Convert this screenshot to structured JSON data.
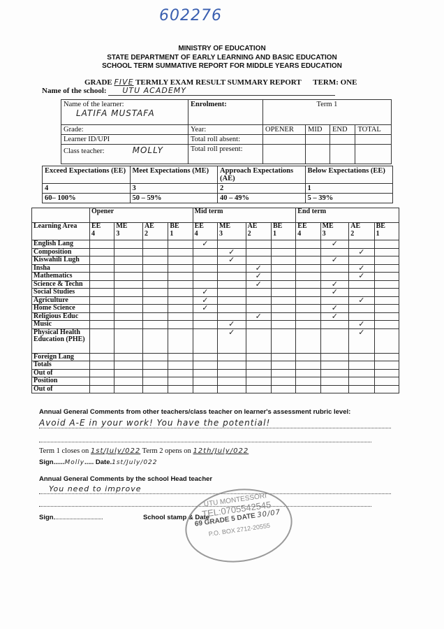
{
  "doc_number": "602276",
  "header": {
    "line1": "MINISTRY OF EDUCATION",
    "line2": "STATE DEPARTMENT OF EARLY LEARNING AND BASIC EDUCATION",
    "line3": "SCHOOL TERM SUMMATIVE REPORT FOR MIDDLE YEARS EDUCATION"
  },
  "title": {
    "grade_label": "GRADE",
    "grade_value": "FIVE",
    "report_label": "TERMLY EXAM RESULT SUMMARY REPORT",
    "term": "TERM: ONE"
  },
  "school": {
    "label": "Name of the school:",
    "value": "UTU ACADEMY"
  },
  "learner_info": {
    "name_label": "Name of the learner:",
    "name_value": "LATIFA MUSTAFA",
    "grade_label": "Grade:",
    "id_label": "Learner ID/UPI",
    "teacher_label": "Class teacher:",
    "teacher_value": "MOLLY",
    "enrolment_label": "Enrolment:",
    "year_label": "Year:",
    "absent_label": "Total roll absent:",
    "present_label": "Total roll present:",
    "term_header": "Term 1",
    "term_cols": [
      "OPENER",
      "MID",
      "END",
      "TOTAL"
    ]
  },
  "rubric": [
    {
      "label": "Exceed Expectations (EE)",
      "score": "4",
      "range": "60– 100%"
    },
    {
      "label": "Meet Expectations (ME)",
      "score": "3",
      "range": "50 – 59%"
    },
    {
      "label": "Approach Expectations (AE)",
      "score": "2",
      "range": "40 – 49%"
    },
    {
      "label": "Below Expectations (EE)",
      "score": "1",
      "range": "5 – 39%"
    }
  ],
  "results": {
    "area_header": "Learning Area",
    "periods": [
      "Opener",
      "Mid term",
      "End term"
    ],
    "levels": [
      "EE 4",
      "ME 3",
      "AE 2",
      "BE 1"
    ],
    "check_mark": "✓",
    "rows": [
      {
        "area": "English Lang",
        "mid": "EE",
        "end": "ME"
      },
      {
        "area": "Composition",
        "mid": "ME",
        "end": "AE"
      },
      {
        "area": "Kiswahili Lugh",
        "mid": "ME",
        "end": "ME"
      },
      {
        "area": "Insha",
        "mid": "AE",
        "end": "AE"
      },
      {
        "area": "Mathematics",
        "mid": "AE",
        "end": "AE"
      },
      {
        "area": "Science & Techn",
        "mid": "AE",
        "end": "ME"
      },
      {
        "area": "Social Studies",
        "mid": "EE",
        "end": "ME"
      },
      {
        "area": "Agriculture",
        "mid": "EE",
        "end": "AE"
      },
      {
        "area": "Home Science",
        "mid": "EE",
        "end": "ME"
      },
      {
        "area": "Religious Educ",
        "mid": "AE",
        "end": "ME"
      },
      {
        "area": "Music",
        "mid": "ME",
        "end": "AE"
      },
      {
        "area": "Physical Health Education (PHE)",
        "mid": "ME",
        "end": "AE",
        "tall": true
      },
      {
        "area": "Foreign Lang"
      },
      {
        "area": "Totals"
      },
      {
        "area": "Out of"
      },
      {
        "area": "Position"
      },
      {
        "area": "Out of"
      }
    ]
  },
  "comments": {
    "teacher_label": "Annual General Comments from other teachers/class teacher on learner's assessment rubric level:",
    "teacher_comment": "Avoid A-E in your work! You have the potential!",
    "term1_close_label": "Term 1 closes on",
    "term1_close_value": "1st/July/022",
    "term2_open_label": "Term 2 opens on",
    "term2_open_value": "12th/July/022",
    "sign_label": "Sign",
    "sign_value": "Molly",
    "date_label": "Date",
    "date_value": "1st/July/022",
    "head_label": "Annual General Comments by the school Head teacher",
    "head_comment": "You need to improve",
    "head_sign_label": "Sign",
    "stamp_label": "School stamp & Date"
  },
  "stamp": {
    "school": "UTU MONTESSORI",
    "tel": "TEL:0705542545",
    "grade": "69  GRADE 5",
    "date_label": "DATE",
    "date_value": "30/07",
    "box": "P.O. BOX 2712-20555"
  }
}
